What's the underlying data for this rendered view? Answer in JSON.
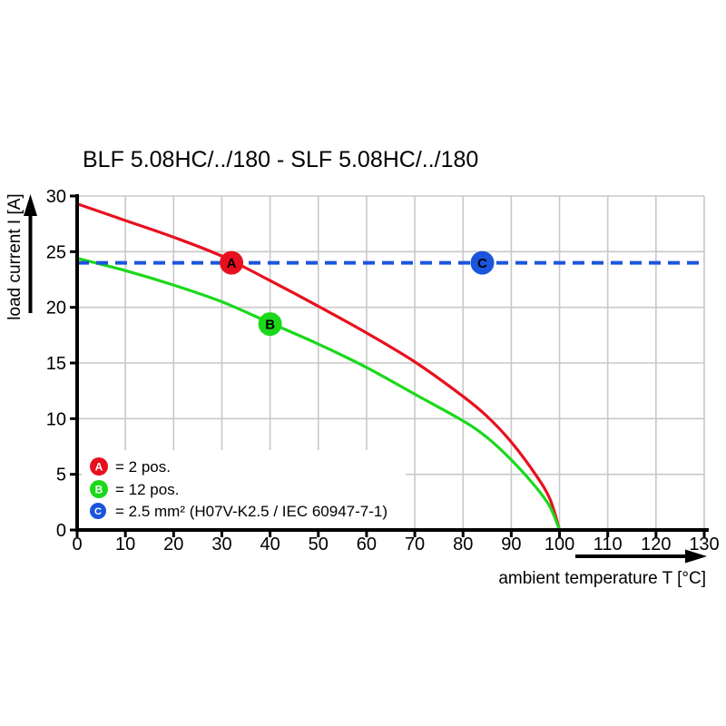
{
  "title": "BLF 5.08HC/../180 - SLF 5.08HC/../180",
  "colors": {
    "red": "#e8101e",
    "green": "#1bd81b",
    "blue": "#1b55dd",
    "grid": "#c8c8c8",
    "axis": "#000000"
  },
  "chart_data": {
    "type": "line",
    "title": "BLF 5.08HC/../180 - SLF 5.08HC/../180",
    "xlabel": "ambient temperature T [°C]",
    "ylabel": "load current I [A]",
    "xlim": [
      0,
      130
    ],
    "ylim": [
      0,
      30
    ],
    "xticks": [
      0,
      10,
      20,
      30,
      40,
      50,
      60,
      70,
      80,
      90,
      100,
      110,
      120,
      130
    ],
    "yticks": [
      0,
      5,
      10,
      15,
      20,
      25,
      30
    ],
    "grid": true,
    "legend_position": "lower left",
    "series": [
      {
        "name": "A",
        "label": "2 pos.",
        "color": "#e8101e",
        "line_style": "solid",
        "points": [
          [
            0,
            29.3
          ],
          [
            10,
            27.8
          ],
          [
            20,
            26.3
          ],
          [
            30,
            24.6
          ],
          [
            40,
            22.4
          ],
          [
            50,
            20.1
          ],
          [
            60,
            17.7
          ],
          [
            70,
            15.1
          ],
          [
            80,
            12.0
          ],
          [
            85,
            10.2
          ],
          [
            90,
            7.9
          ],
          [
            95,
            5.0
          ],
          [
            98,
            2.8
          ],
          [
            100,
            0
          ]
        ]
      },
      {
        "name": "B",
        "label": "12 pos.",
        "color": "#1bd81b",
        "line_style": "solid",
        "points": [
          [
            0,
            24.4
          ],
          [
            10,
            23.3
          ],
          [
            20,
            22.0
          ],
          [
            30,
            20.5
          ],
          [
            40,
            18.6
          ],
          [
            50,
            16.7
          ],
          [
            60,
            14.6
          ],
          [
            70,
            12.2
          ],
          [
            80,
            9.8
          ],
          [
            85,
            8.3
          ],
          [
            90,
            6.3
          ],
          [
            95,
            3.9
          ],
          [
            98,
            2.1
          ],
          [
            100,
            0
          ]
        ]
      },
      {
        "name": "C",
        "label": "2.5 mm² (H07V-K2.5 / IEC 60947-7-1)",
        "color": "#1b55dd",
        "line_style": "dashed",
        "points": [
          [
            0,
            24
          ],
          [
            130,
            24
          ]
        ]
      }
    ],
    "markers": [
      {
        "letter": "A",
        "t": 32,
        "i": 24,
        "color": "#e8101e"
      },
      {
        "letter": "B",
        "t": 40,
        "i": 18.5,
        "color": "#1bd81b"
      },
      {
        "letter": "C",
        "t": 84,
        "i": 24,
        "color": "#1b55dd"
      }
    ],
    "legend": [
      {
        "letter": "A",
        "text": "= 2 pos.",
        "color": "#e8101e"
      },
      {
        "letter": "B",
        "text": "= 12 pos.",
        "color": "#1bd81b"
      },
      {
        "letter": "C",
        "text": "= 2.5 mm² (H07V-K2.5 / IEC 60947-7-1)",
        "color": "#1b55dd"
      }
    ]
  }
}
